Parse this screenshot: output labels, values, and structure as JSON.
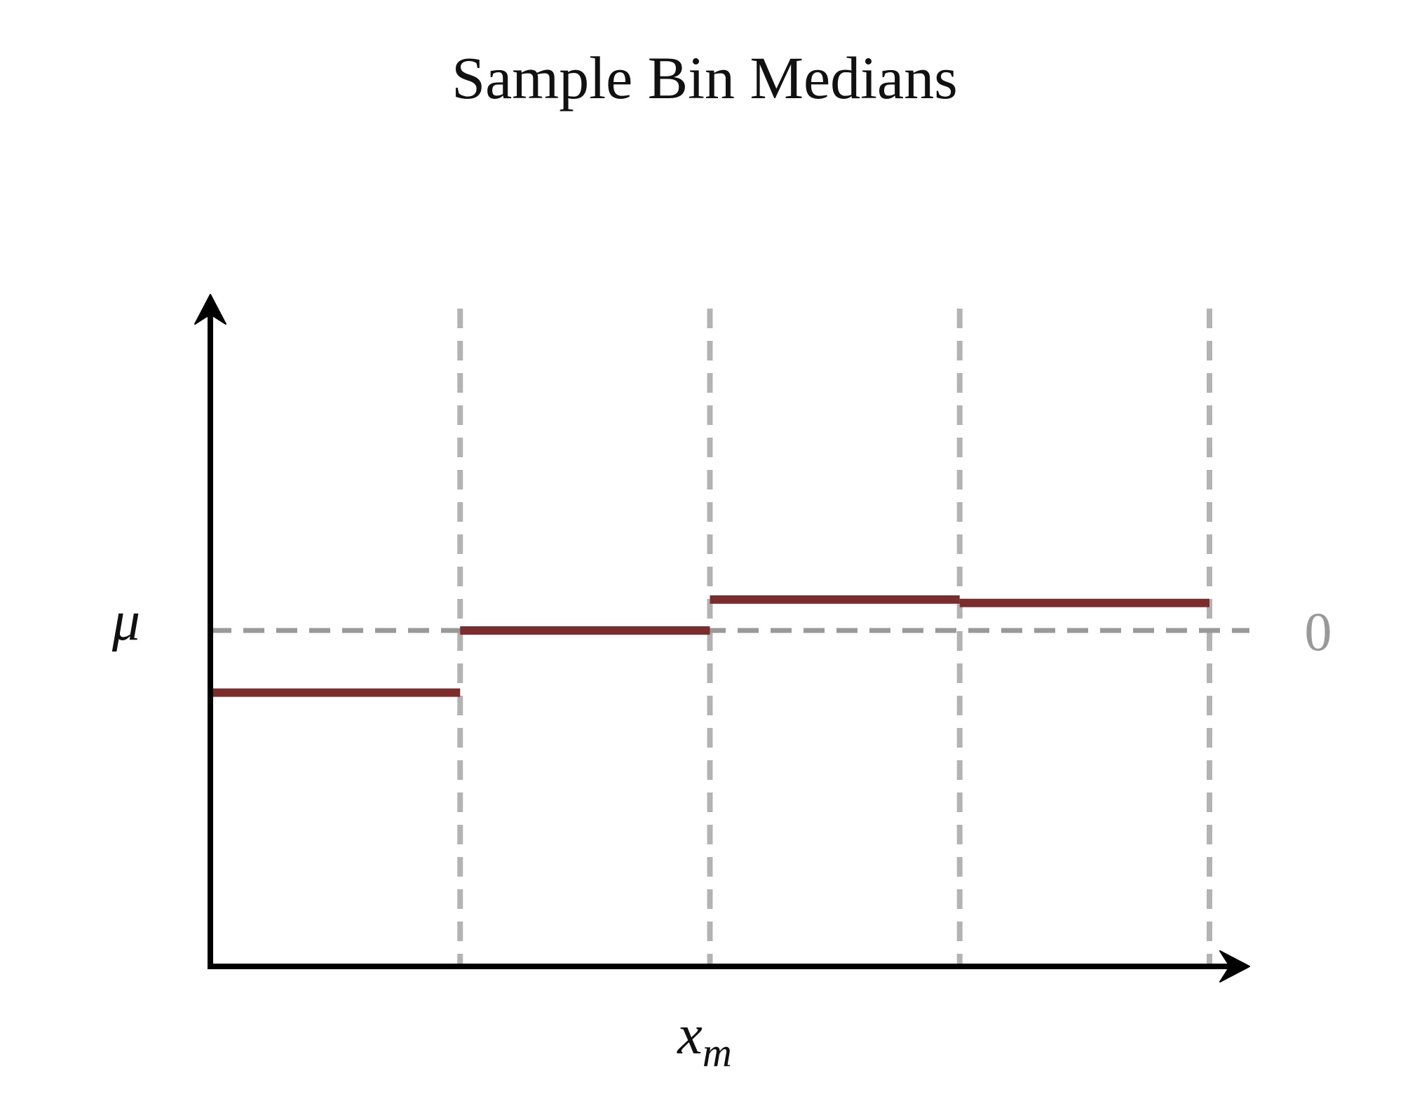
{
  "chart_data": {
    "type": "line",
    "title": "Sample Bin Medians",
    "xlabel": "x",
    "xlabel_subscript": "m",
    "ylabel": "μ",
    "reference_line": {
      "y": 0,
      "label": "0"
    },
    "bin_edges": [
      0,
      1,
      2,
      3,
      4
    ],
    "xlim": [
      0,
      4.16
    ],
    "ylim": [
      -1.0,
      1.0
    ],
    "series": [
      {
        "segments": [
          {
            "x0": 0,
            "x1": 1,
            "y": -0.185
          },
          {
            "x0": 1,
            "x1": 2,
            "y": 0.0
          },
          {
            "x0": 2,
            "x1": 3,
            "y": 0.092
          },
          {
            "x0": 3,
            "x1": 4,
            "y": 0.082
          }
        ]
      }
    ],
    "colors": {
      "median": "#7b2d2d",
      "reference": "#999999",
      "bin_edge": "#b3b3b3",
      "axis": "#000000",
      "ref_label": "#999999"
    }
  }
}
